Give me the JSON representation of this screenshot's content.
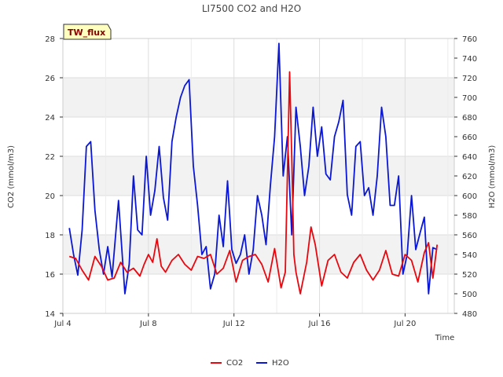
{
  "chart_data": {
    "type": "line",
    "title": "LI7500 CO2 and H2O",
    "xlabel": "Time",
    "ylabel": "CO2 (mmol/m3)",
    "y2label": "H2O (mmol/m3)",
    "badge": "TW_flux",
    "xlim": [
      4.0,
      22.3
    ],
    "ylim": [
      14,
      28
    ],
    "y2lim": [
      480,
      760
    ],
    "x_ticks": [
      {
        "value": 4,
        "label": "Jul 4"
      },
      {
        "value": 8,
        "label": "Jul 8"
      },
      {
        "value": 12,
        "label": "Jul 12"
      },
      {
        "value": 16,
        "label": "Jul 16"
      },
      {
        "value": 20,
        "label": "Jul 20"
      }
    ],
    "y_ticks": [
      14,
      16,
      18,
      20,
      22,
      24,
      26,
      28
    ],
    "y2_ticks": [
      480,
      500,
      520,
      540,
      560,
      580,
      600,
      620,
      640,
      660,
      680,
      700,
      720,
      740,
      760
    ],
    "grid": true,
    "legend_position": "bottom-center",
    "series": [
      {
        "name": "CO2",
        "axis": "left",
        "color": "#e8070e",
        "x": [
          4.3,
          4.6,
          4.9,
          5.2,
          5.5,
          5.8,
          6.1,
          6.4,
          6.7,
          7.0,
          7.3,
          7.6,
          7.8,
          8.0,
          8.2,
          8.4,
          8.6,
          8.8,
          9.1,
          9.4,
          9.7,
          10.0,
          10.3,
          10.6,
          10.9,
          11.2,
          11.5,
          11.8,
          12.1,
          12.4,
          12.7,
          13.0,
          13.3,
          13.6,
          13.9,
          14.2,
          14.4,
          14.6,
          14.7,
          14.8,
          14.9,
          15.1,
          15.4,
          15.6,
          15.8,
          16.1,
          16.4,
          16.7,
          17.0,
          17.3,
          17.6,
          17.9,
          18.2,
          18.5,
          18.8,
          19.1,
          19.4,
          19.7,
          20.0,
          20.3,
          20.6,
          20.9,
          21.1,
          21.3,
          21.5
        ],
        "values": [
          16.9,
          16.8,
          16.2,
          15.7,
          16.9,
          16.4,
          15.7,
          15.8,
          16.6,
          16.1,
          16.3,
          15.9,
          16.5,
          17.0,
          16.6,
          17.8,
          16.4,
          16.1,
          16.7,
          17.0,
          16.5,
          16.2,
          16.9,
          16.8,
          17.0,
          16.0,
          16.3,
          17.2,
          15.6,
          16.7,
          16.9,
          17.0,
          16.5,
          15.6,
          17.3,
          15.3,
          16.1,
          26.3,
          22.0,
          17.0,
          16.1,
          15.0,
          16.6,
          18.4,
          17.5,
          15.4,
          16.7,
          17.0,
          16.1,
          15.8,
          16.6,
          17.0,
          16.2,
          15.7,
          16.2,
          17.2,
          16.0,
          15.9,
          17.0,
          16.7,
          15.6,
          17.1,
          17.6,
          15.8,
          17.5
        ]
      },
      {
        "name": "H2O",
        "axis": "right",
        "color": "#0a17d4",
        "x": [
          4.3,
          4.5,
          4.7,
          4.9,
          5.1,
          5.3,
          5.5,
          5.7,
          5.9,
          6.1,
          6.3,
          6.6,
          6.9,
          7.1,
          7.3,
          7.5,
          7.7,
          7.9,
          8.1,
          8.3,
          8.5,
          8.7,
          8.9,
          9.1,
          9.3,
          9.5,
          9.7,
          9.9,
          10.1,
          10.3,
          10.5,
          10.7,
          10.9,
          11.1,
          11.3,
          11.5,
          11.7,
          11.9,
          12.1,
          12.3,
          12.5,
          12.7,
          12.9,
          13.1,
          13.3,
          13.5,
          13.7,
          13.9,
          14.1,
          14.3,
          14.5,
          14.7,
          14.9,
          15.1,
          15.3,
          15.5,
          15.7,
          15.9,
          16.1,
          16.3,
          16.5,
          16.7,
          16.9,
          17.1,
          17.3,
          17.5,
          17.7,
          17.9,
          18.1,
          18.3,
          18.5,
          18.7,
          18.9,
          19.1,
          19.3,
          19.5,
          19.7,
          19.9,
          20.1,
          20.3,
          20.5,
          20.7,
          20.9,
          21.1,
          21.3,
          21.5
        ],
        "values": [
          567,
          540,
          519,
          565,
          650,
          655,
          585,
          545,
          520,
          548,
          517,
          595,
          500,
          530,
          620,
          565,
          560,
          640,
          580,
          605,
          650,
          598,
          575,
          655,
          680,
          700,
          712,
          718,
          630,
          590,
          540,
          548,
          505,
          520,
          580,
          548,
          615,
          545,
          531,
          540,
          560,
          520,
          545,
          600,
          580,
          550,
          610,
          660,
          755,
          620,
          660,
          560,
          690,
          650,
          600,
          630,
          690,
          640,
          670,
          622,
          616,
          660,
          675,
          697,
          601,
          580,
          650,
          655,
          600,
          608,
          580,
          620,
          690,
          660,
          590,
          590,
          620,
          520,
          540,
          600,
          545,
          562,
          578,
          500,
          547,
          545
        ]
      }
    ]
  },
  "legend": {
    "items": [
      {
        "label": "CO2",
        "color": "#e8070e"
      },
      {
        "label": "H2O",
        "color": "#0a17d4"
      }
    ]
  }
}
